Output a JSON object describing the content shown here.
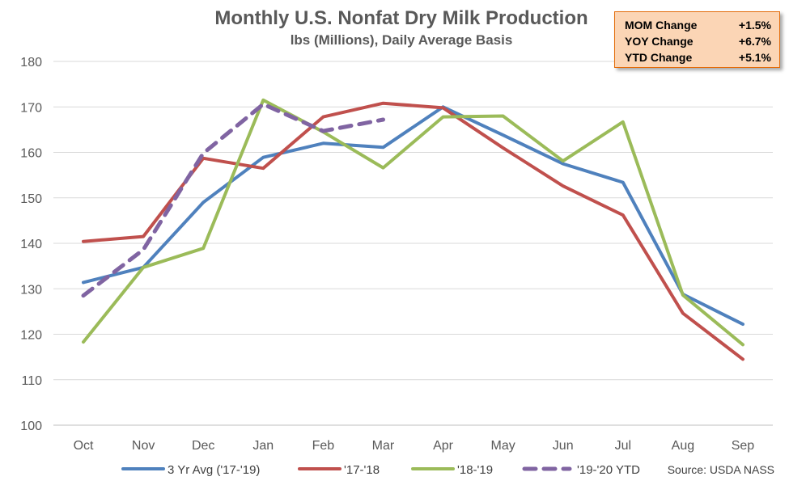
{
  "chart_data": {
    "type": "line",
    "title": "Monthly U.S. Nonfat Dry Milk Production",
    "subtitle": "lbs (Millions), Daily Average Basis",
    "categories": [
      "Oct",
      "Nov",
      "Dec",
      "Jan",
      "Feb",
      "Mar",
      "Apr",
      "May",
      "Jun",
      "Jul",
      "Aug",
      "Sep"
    ],
    "ylim": [
      100,
      180
    ],
    "yticks": [
      100,
      110,
      120,
      130,
      140,
      150,
      160,
      170,
      180
    ],
    "grid": true,
    "legend_position": "bottom",
    "series": [
      {
        "name": "3 Yr Avg ('17-'19)",
        "color": "#4f81bd",
        "dashed": false,
        "values": [
          131.4,
          134.7,
          149.0,
          158.9,
          162.0,
          161.1,
          170.0,
          163.8,
          157.5,
          153.4,
          128.8,
          122.2
        ]
      },
      {
        "name": "'17-'18",
        "color": "#c0504d",
        "dashed": false,
        "values": [
          140.4,
          141.5,
          158.7,
          156.5,
          167.8,
          170.8,
          169.8,
          161.0,
          152.6,
          146.2,
          124.6,
          114.5
        ]
      },
      {
        "name": "'18-'19",
        "color": "#9bbb59",
        "dashed": false,
        "values": [
          118.3,
          134.7,
          138.9,
          171.5,
          164.5,
          156.6,
          167.8,
          168.0,
          158.1,
          166.7,
          128.6,
          117.7
        ]
      },
      {
        "name": "'19-'20 YTD",
        "color": "#8064a2",
        "dashed": true,
        "values": [
          128.5,
          138.6,
          159.8,
          170.6,
          164.7,
          167.2,
          null,
          null,
          null,
          null,
          null,
          null
        ]
      }
    ],
    "source": "Source: USDA NASS"
  },
  "stats": [
    {
      "label": "MOM Change",
      "value": "+1.5%"
    },
    {
      "label": "YOY Change",
      "value": "+6.7%"
    },
    {
      "label": "YTD Change",
      "value": "+5.1%"
    }
  ]
}
